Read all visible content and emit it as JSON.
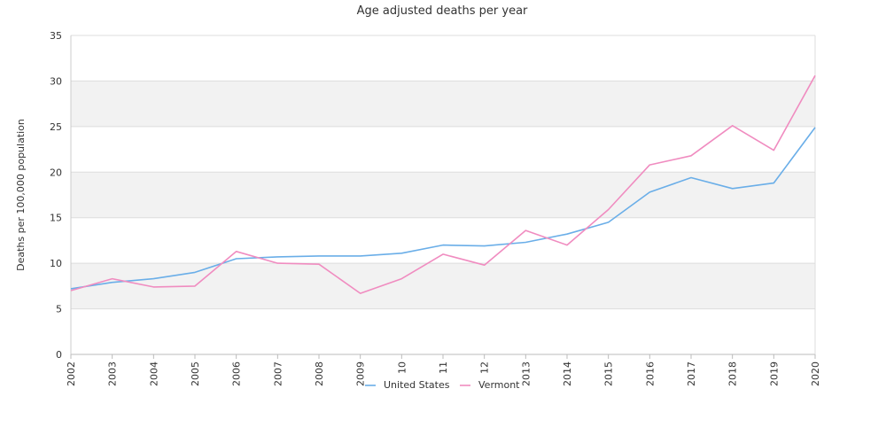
{
  "chart_data": {
    "type": "line",
    "title": "Age adjusted deaths per year",
    "xlabel": "",
    "ylabel": "Deaths per 100,000 population",
    "x": [
      "2002",
      "2003",
      "2004",
      "2005",
      "2006",
      "2007",
      "2008",
      "2009",
      "2010",
      "2011",
      "2012",
      "2013",
      "2014",
      "2015",
      "2016",
      "2017",
      "2018",
      "2019",
      "2020"
    ],
    "x_tick_labels": [
      "2002",
      "2003",
      "2004",
      "2005",
      "2006",
      "2007",
      "2008",
      "2009",
      "10",
      "11",
      "12",
      "2013",
      "2014",
      "2015",
      "2016",
      "2017",
      "2018",
      "2019",
      "2020"
    ],
    "ylim": [
      0,
      35
    ],
    "yticks": [
      0,
      5,
      10,
      15,
      20,
      25,
      30,
      35
    ],
    "grid": "alternating horizontal bands",
    "legend_position": "bottom-center",
    "series": [
      {
        "name": "United States",
        "color": "#6aaee8",
        "values": [
          7.2,
          7.9,
          8.3,
          9.0,
          10.5,
          10.7,
          10.8,
          10.8,
          11.1,
          12.0,
          11.9,
          12.3,
          13.2,
          14.5,
          17.8,
          19.4,
          18.2,
          18.8,
          24.9
        ]
      },
      {
        "name": "Vermont",
        "color": "#f08cc0",
        "values": [
          7.0,
          8.3,
          7.4,
          7.5,
          11.3,
          10.0,
          9.9,
          6.7,
          8.3,
          11.0,
          9.8,
          13.6,
          12.0,
          15.9,
          20.8,
          21.8,
          25.1,
          22.4,
          30.6
        ]
      }
    ]
  }
}
